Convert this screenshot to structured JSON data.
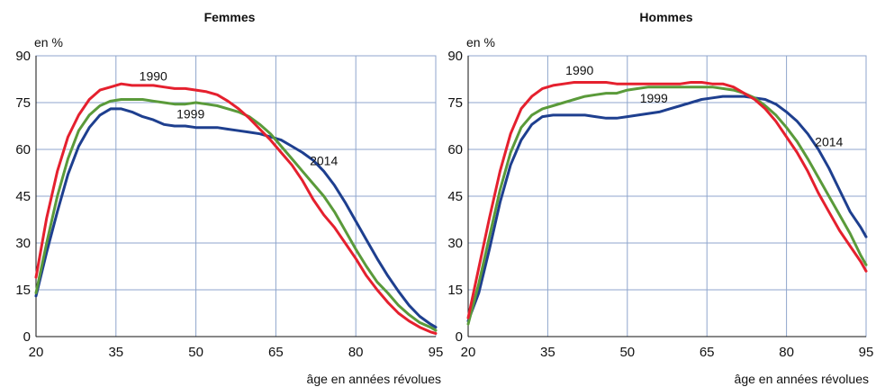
{
  "chart_data": [
    {
      "type": "line",
      "title": "Femmes",
      "unit_label": "en %",
      "xlabel": "âge en années révolues",
      "xlim": [
        20,
        95
      ],
      "ylim": [
        0,
        90
      ],
      "xticks": [
        20,
        35,
        50,
        65,
        80,
        95
      ],
      "yticks": [
        0,
        15,
        30,
        45,
        60,
        75,
        90
      ],
      "grid": true,
      "series": [
        {
          "name": "1990",
          "color": "#e5202e",
          "x": [
            20,
            22,
            24,
            26,
            28,
            30,
            32,
            34,
            36,
            38,
            40,
            42,
            44,
            46,
            48,
            50,
            52,
            54,
            56,
            58,
            60,
            62,
            64,
            66,
            68,
            70,
            72,
            74,
            76,
            78,
            80,
            82,
            84,
            86,
            88,
            90,
            92,
            94,
            95
          ],
          "y": [
            19,
            38,
            53,
            64,
            71,
            76,
            79,
            80,
            81,
            80.5,
            80.5,
            80.5,
            80,
            79.5,
            79.5,
            79,
            78.5,
            77.5,
            75.5,
            73,
            70,
            66.5,
            63,
            59,
            55,
            50,
            44,
            39,
            35,
            30,
            25,
            19.5,
            15,
            11,
            7.5,
            5,
            3,
            1.5,
            1
          ]
        },
        {
          "name": "1999",
          "color": "#5a9a3a",
          "x": [
            20,
            22,
            24,
            26,
            28,
            30,
            32,
            34,
            36,
            38,
            40,
            42,
            44,
            46,
            48,
            50,
            52,
            54,
            56,
            58,
            60,
            62,
            64,
            66,
            68,
            70,
            72,
            74,
            76,
            78,
            80,
            82,
            84,
            86,
            88,
            90,
            92,
            94,
            95
          ],
          "y": [
            14,
            30,
            45,
            57,
            66,
            71,
            74,
            75.5,
            76,
            76,
            76,
            75.5,
            75,
            74.5,
            74.5,
            75,
            74.5,
            74,
            73,
            72,
            70.5,
            68,
            65,
            61,
            57,
            53,
            49,
            45,
            40,
            34,
            28,
            22.5,
            17.5,
            14,
            10,
            7,
            4.5,
            3,
            2
          ]
        },
        {
          "name": "2014",
          "color": "#1e3f8f",
          "x": [
            20,
            22,
            24,
            26,
            28,
            30,
            32,
            34,
            36,
            38,
            40,
            42,
            44,
            46,
            48,
            50,
            52,
            54,
            56,
            58,
            60,
            62,
            64,
            66,
            68,
            70,
            72,
            74,
            76,
            78,
            80,
            82,
            84,
            86,
            88,
            90,
            92,
            94,
            95
          ],
          "y": [
            13,
            27,
            40,
            52,
            61,
            67,
            71,
            73,
            73,
            72,
            70.5,
            69.5,
            68,
            67.5,
            67.5,
            67,
            67,
            67,
            66.5,
            66,
            65.5,
            65,
            64,
            63,
            61,
            59,
            56.5,
            53,
            48.5,
            43,
            37,
            31,
            25,
            19.5,
            14.5,
            10,
            6.5,
            4,
            3
          ]
        }
      ],
      "labels": [
        {
          "text": "1990",
          "x": 42,
          "y": 82
        },
        {
          "text": "1999",
          "x": 49,
          "y": 70
        },
        {
          "text": "2014",
          "x": 74,
          "y": 55
        }
      ]
    },
    {
      "type": "line",
      "title": "Hommes",
      "unit_label": "en %",
      "xlabel": "âge en années révolues",
      "xlim": [
        20,
        95
      ],
      "ylim": [
        0,
        90
      ],
      "xticks": [
        20,
        35,
        50,
        65,
        80,
        95
      ],
      "yticks": [
        0,
        15,
        30,
        45,
        60,
        75,
        90
      ],
      "grid": true,
      "series": [
        {
          "name": "1990",
          "color": "#e5202e",
          "x": [
            20,
            22,
            24,
            26,
            28,
            30,
            32,
            34,
            36,
            38,
            40,
            42,
            44,
            46,
            48,
            50,
            52,
            54,
            56,
            58,
            60,
            62,
            64,
            66,
            68,
            70,
            72,
            74,
            76,
            78,
            80,
            82,
            84,
            86,
            88,
            90,
            92,
            94,
            95
          ],
          "y": [
            6,
            22,
            38,
            53,
            65,
            73,
            77,
            79.5,
            80.5,
            81,
            81.5,
            81.5,
            81.5,
            81.5,
            81,
            81,
            81,
            81,
            81,
            81,
            81,
            81.5,
            81.5,
            81,
            81,
            80,
            78,
            76,
            73,
            69,
            64,
            59,
            53,
            46,
            40,
            34,
            29,
            24,
            21
          ]
        },
        {
          "name": "1999",
          "color": "#5a9a3a",
          "x": [
            20,
            22,
            24,
            26,
            28,
            30,
            32,
            34,
            36,
            38,
            40,
            42,
            44,
            46,
            48,
            50,
            52,
            54,
            56,
            58,
            60,
            62,
            64,
            66,
            68,
            70,
            72,
            74,
            76,
            78,
            80,
            82,
            84,
            86,
            88,
            90,
            92,
            94,
            95
          ],
          "y": [
            4,
            17,
            32,
            47,
            59,
            67,
            71,
            73,
            74,
            75,
            76,
            77,
            77.5,
            78,
            78,
            79,
            79.5,
            80,
            80,
            80,
            80,
            80,
            80,
            80,
            79.5,
            79,
            78,
            76.5,
            74,
            71,
            67,
            62.5,
            57,
            51,
            45,
            39,
            33,
            26,
            23
          ]
        },
        {
          "name": "2014",
          "color": "#1e3f8f",
          "x": [
            20,
            22,
            24,
            26,
            28,
            30,
            32,
            34,
            36,
            38,
            40,
            42,
            44,
            46,
            48,
            50,
            52,
            54,
            56,
            58,
            60,
            62,
            64,
            66,
            68,
            70,
            72,
            74,
            76,
            78,
            80,
            82,
            84,
            86,
            88,
            90,
            92,
            94,
            95
          ],
          "y": [
            5,
            14,
            28,
            43,
            55,
            63,
            68,
            70.5,
            71,
            71,
            71,
            71,
            70.5,
            70,
            70,
            70.5,
            71,
            71.5,
            72,
            73,
            74,
            75,
            76,
            76.5,
            77,
            77,
            77,
            76.5,
            76,
            74.5,
            72,
            69,
            65,
            60,
            54,
            47,
            40,
            35,
            32
          ]
        }
      ],
      "labels": [
        {
          "text": "1990",
          "x": 41,
          "y": 84
        },
        {
          "text": "1999",
          "x": 55,
          "y": 75
        },
        {
          "text": "2014",
          "x": 88,
          "y": 61
        }
      ]
    }
  ]
}
